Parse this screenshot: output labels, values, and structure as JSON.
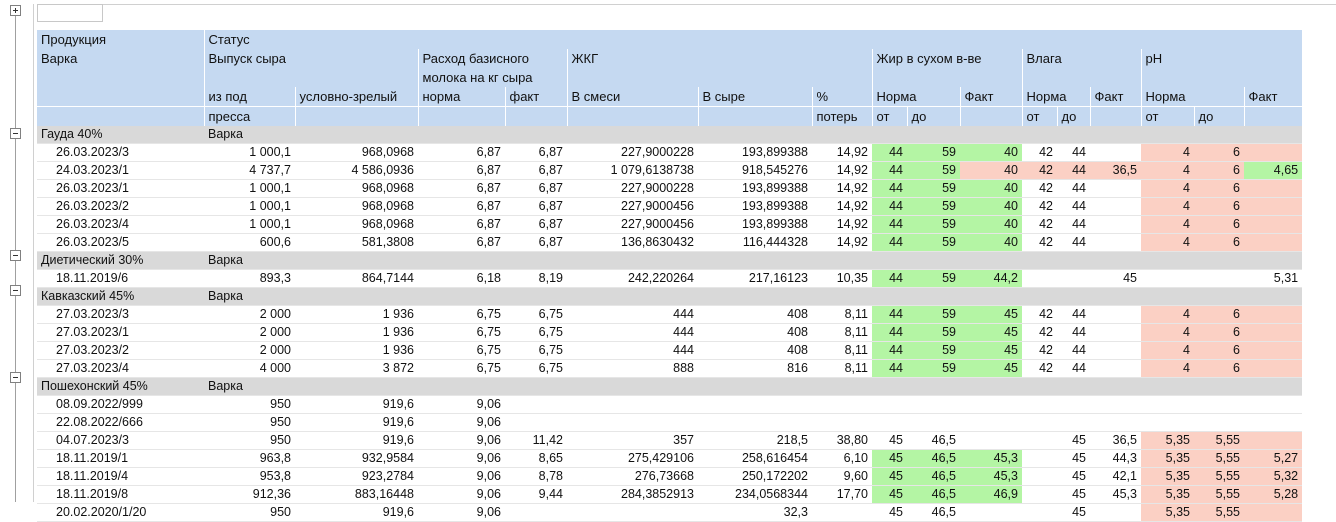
{
  "header": {
    "production": "Продукция",
    "batch": "Варка",
    "status": "Статус",
    "cheese_output": "Выпуск сыра",
    "from_press_1": "из под",
    "from_press_2": "пресса",
    "conditional_ripe": "условно-зрелый",
    "base_milk_1": "Расход базисного",
    "base_milk_2": "молока на кг сыра",
    "norm": "норма",
    "fact": "факт",
    "zhkg": "ЖКГ",
    "in_mix": "В смеси",
    "in_cheese": "В сыре",
    "pct_1": "%",
    "pct_2": "потерь",
    "fat_dry": "Жир в сухом в-ве",
    "fat_norm": "Норма",
    "fat_fact": "Факт",
    "moisture": "Влага",
    "moist_norm": "Норма",
    "moist_fact": "Факт",
    "ph": "pH",
    "ph_norm": "Норма",
    "ph_fact": "Факт",
    "from": "от",
    "to": "до"
  },
  "groups": [
    {
      "name": "Гауда 40%",
      "status": "Варка",
      "rows": [
        [
          "26.03.2023/3",
          "1 000,1",
          "968,0968",
          "6,87",
          "6,87",
          "227,9000228",
          "193,899388",
          "14,92",
          "44",
          "59",
          "40",
          "42",
          "44",
          "",
          "4",
          "6",
          ""
        ],
        [
          "24.03.2023/1",
          "4 737,7",
          "4 586,0936",
          "6,87",
          "6,87",
          "1 079,6138738",
          "918,545276",
          "14,92",
          "44",
          "59",
          "40",
          "42",
          "44",
          "36,5",
          "4",
          "6",
          "4,65"
        ],
        [
          "26.03.2023/1",
          "1 000,1",
          "968,0968",
          "6,87",
          "6,87",
          "227,9000228",
          "193,899388",
          "14,92",
          "44",
          "59",
          "40",
          "42",
          "44",
          "",
          "4",
          "6",
          ""
        ],
        [
          "26.03.2023/2",
          "1 000,1",
          "968,0968",
          "6,87",
          "6,87",
          "227,9000456",
          "193,899388",
          "14,92",
          "44",
          "59",
          "40",
          "42",
          "44",
          "",
          "4",
          "6",
          ""
        ],
        [
          "26.03.2023/4",
          "1 000,1",
          "968,0968",
          "6,87",
          "6,87",
          "227,9000456",
          "193,899388",
          "14,92",
          "44",
          "59",
          "40",
          "42",
          "44",
          "",
          "4",
          "6",
          ""
        ],
        [
          "26.03.2023/5",
          "600,6",
          "581,3808",
          "6,87",
          "6,87",
          "136,8630432",
          "116,444328",
          "14,92",
          "44",
          "59",
          "40",
          "42",
          "44",
          "",
          "4",
          "6",
          ""
        ]
      ]
    },
    {
      "name": "Диетический 30%",
      "status": "Варка",
      "rows": [
        [
          "18.11.2019/6",
          "893,3",
          "864,7144",
          "6,18",
          "8,19",
          "242,220264",
          "217,16123",
          "10,35",
          "44",
          "59",
          "44,2",
          "",
          "",
          "45",
          "",
          "",
          "5,31"
        ]
      ]
    },
    {
      "name": "Кавказский 45%",
      "status": "Варка",
      "rows": [
        [
          "27.03.2023/3",
          "2 000",
          "1 936",
          "6,75",
          "6,75",
          "444",
          "408",
          "8,11",
          "44",
          "59",
          "45",
          "42",
          "44",
          "",
          "4",
          "6",
          ""
        ],
        [
          "27.03.2023/1",
          "2 000",
          "1 936",
          "6,75",
          "6,75",
          "444",
          "408",
          "8,11",
          "44",
          "59",
          "45",
          "42",
          "44",
          "",
          "4",
          "6",
          ""
        ],
        [
          "27.03.2023/2",
          "2 000",
          "1 936",
          "6,75",
          "6,75",
          "444",
          "408",
          "8,11",
          "44",
          "59",
          "45",
          "42",
          "44",
          "",
          "4",
          "6",
          ""
        ],
        [
          "27.03.2023/4",
          "4 000",
          "3 872",
          "6,75",
          "6,75",
          "888",
          "816",
          "8,11",
          "44",
          "59",
          "45",
          "42",
          "44",
          "",
          "4",
          "6",
          ""
        ]
      ]
    },
    {
      "name": "Пошехонский 45%",
      "status": "Варка",
      "rows": [
        [
          "08.09.2022/999",
          "950",
          "919,6",
          "9,06",
          "",
          "",
          "",
          "",
          "",
          "",
          "",
          "",
          "",
          "",
          "",
          "",
          ""
        ],
        [
          "22.08.2022/666",
          "950",
          "919,6",
          "9,06",
          "",
          "",
          "",
          "",
          "",
          "",
          "",
          "",
          "",
          "",
          "",
          "",
          ""
        ],
        [
          "04.07.2023/3",
          "950",
          "919,6",
          "9,06",
          "11,42",
          "357",
          "218,5",
          "38,80",
          "45",
          "46,5",
          "",
          "",
          "45",
          "36,5",
          "5,35",
          "5,55",
          ""
        ],
        [
          "18.11.2019/1",
          "963,8",
          "932,9584",
          "9,06",
          "8,65",
          "275,429106",
          "258,616454",
          "6,10",
          "45",
          "46,5",
          "45,3",
          "",
          "45",
          "44,3",
          "5,35",
          "5,55",
          "5,27"
        ],
        [
          "18.11.2019/4",
          "953,8",
          "923,2784",
          "9,06",
          "8,78",
          "276,73668",
          "250,172202",
          "9,60",
          "45",
          "46,5",
          "45,3",
          "",
          "45",
          "42,1",
          "5,35",
          "5,55",
          "5,32"
        ],
        [
          "18.11.2019/8",
          "912,36",
          "883,16448",
          "9,06",
          "9,44",
          "284,3852913",
          "234,0568344",
          "17,70",
          "45",
          "46,5",
          "46,9",
          "",
          "45",
          "45,3",
          "5,35",
          "5,55",
          "5,28"
        ],
        [
          "20.02.2020/1/20",
          "950",
          "919,6",
          "9,06",
          "",
          "",
          "32,3",
          "",
          "45",
          "46,5",
          "",
          "",
          "45",
          "",
          "5,35",
          "5,55",
          ""
        ]
      ]
    }
  ],
  "colors": {
    "header_bg": "#c5d9f1",
    "group_bg": "#d9d9d9",
    "in_norm": "#b4f5a4",
    "out_norm": "#fbd0c4"
  }
}
